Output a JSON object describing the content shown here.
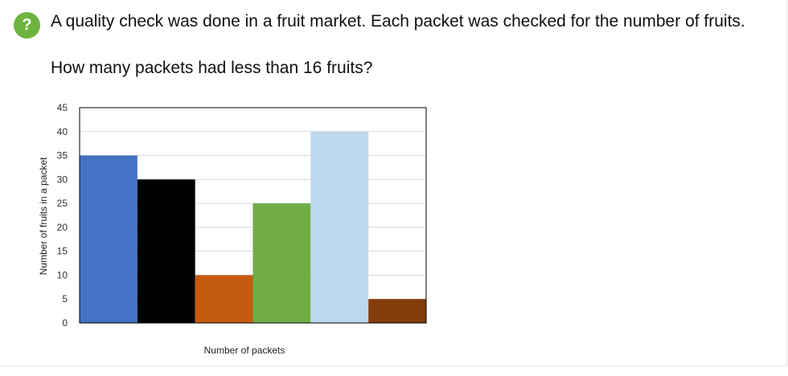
{
  "question": {
    "help_icon": "?",
    "line1": "A quality check was done in a fruit market. Each packet was checked for the number of fruits.",
    "line2": "How many packets had less than 16 fruits?"
  },
  "chart_data": {
    "type": "bar",
    "categories": [
      "",
      "",
      "",
      "",
      "",
      ""
    ],
    "values": [
      35,
      30,
      10,
      25,
      40,
      5
    ],
    "colors": [
      "#4472c4",
      "#000000",
      "#c55a11",
      "#70ad47",
      "#bdd7ee",
      "#843c0c"
    ],
    "xlabel": "Number  of packets",
    "ylabel": "Number of fruits in a packet",
    "ylim": [
      0,
      45
    ],
    "yticks": [
      0,
      5,
      10,
      15,
      20,
      25,
      30,
      35,
      40,
      45
    ],
    "grid": true,
    "legend": "none"
  }
}
